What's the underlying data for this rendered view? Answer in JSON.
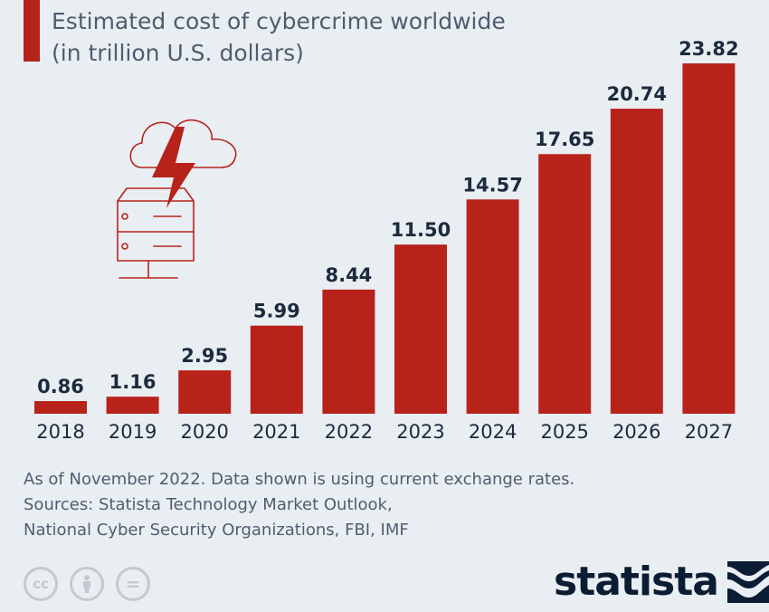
{
  "header": {
    "title_line1": "Estimated cost of cybercrime worldwide",
    "title_line2": "(in trillion U.S. dollars)"
  },
  "chart_data": {
    "type": "bar",
    "categories": [
      "2018",
      "2019",
      "2020",
      "2021",
      "2022",
      "2023",
      "2024",
      "2025",
      "2026",
      "2027"
    ],
    "values": [
      0.86,
      1.16,
      2.95,
      5.99,
      8.44,
      11.5,
      14.57,
      17.65,
      20.74,
      23.82
    ],
    "value_labels": [
      "0.86",
      "1.16",
      "2.95",
      "5.99",
      "8.44",
      "11.50",
      "14.57",
      "17.65",
      "20.74",
      "23.82"
    ],
    "ylim": [
      0,
      23.82
    ],
    "grid": false,
    "bar_color": "#b7231b"
  },
  "notes": {
    "line1": "As of November 2022. Data shown is using current exchange rates.",
    "line2": "Sources: Statista Technology Market Outlook,",
    "line3": "National Cyber Security Organizations, FBI, IMF"
  },
  "license_icons": [
    {
      "icon": "creative-commons-icon",
      "glyph": "cc"
    },
    {
      "icon": "attribution-person-icon",
      "glyph": ""
    },
    {
      "icon": "no-derivatives-icon",
      "glyph": "="
    }
  ],
  "brand": {
    "name": "statista",
    "color": "#0b1c33"
  },
  "illustration": {
    "icon": "server-cloud-lightning-icon",
    "color": "#b7231b"
  }
}
